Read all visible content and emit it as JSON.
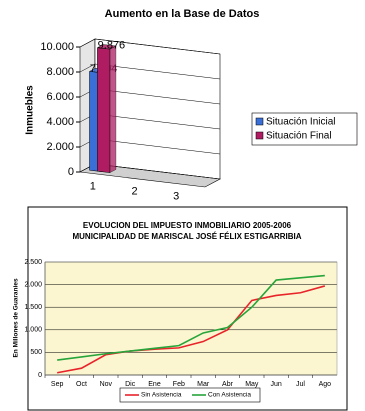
{
  "chart_data": [
    {
      "type": "bar3d",
      "title": "Aumento en la Base de Datos",
      "y_label": "Inmuebles",
      "categories": [
        "1",
        "2",
        "3"
      ],
      "series": [
        {
          "name": "Situación Inicial",
          "color": "#3a6fd8",
          "values": [
            7904,
            null,
            null
          ],
          "value_labels": [
            "7.904",
            null,
            null
          ]
        },
        {
          "name": "Situación Final",
          "color": "#b01c62",
          "values": [
            9876,
            null,
            null
          ],
          "value_labels": [
            "9.876",
            null,
            null
          ]
        }
      ],
      "ylim": [
        0,
        10000
      ],
      "yticks": [
        0,
        {
          "value": 2000,
          "label": "2.000"
        },
        {
          "value": 4000,
          "label": "4.000"
        },
        {
          "value": 6000,
          "label": "6.000"
        },
        {
          "value": 8000,
          "label": "8.000"
        },
        {
          "value": 10000,
          "label": "10.000"
        }
      ],
      "grid": true,
      "legend": "right"
    },
    {
      "type": "line",
      "title": "EVOLUCION DEL IMPUESTO INMOBILIARIO 2005-2006",
      "subtitle": "MUNICIPALIDAD DE MARISCAL JOSÉ FÉLIX ESTIGARRIBIA",
      "y_label": "En Millones de Guaranies",
      "categories": [
        "Sep",
        "Oct",
        "Nov",
        "Dic",
        "Ene",
        "Feb",
        "Mar",
        "Abr",
        "May",
        "Jun",
        "Jul",
        "Ago"
      ],
      "series": [
        {
          "name": "Sin Asistencia",
          "color": "#e8232a",
          "values": [
            50,
            150,
            450,
            530,
            570,
            600,
            740,
            1000,
            1650,
            1760,
            1820,
            1970
          ]
        },
        {
          "name": "Con Asistencia",
          "color": "#27a43a",
          "values": [
            330,
            400,
            470,
            530,
            590,
            650,
            930,
            1050,
            1500,
            2100,
            2150,
            2200
          ]
        }
      ],
      "ylim": [
        0,
        2500
      ],
      "yticks": [
        0,
        500,
        {
          "value": 1000,
          "label": "1.000"
        },
        {
          "value": 1500,
          "label": "1.500"
        },
        {
          "value": 2000,
          "label": "2.000"
        },
        {
          "value": 2500,
          "label": "2.500"
        }
      ],
      "grid": true,
      "legend": "bottom"
    }
  ]
}
